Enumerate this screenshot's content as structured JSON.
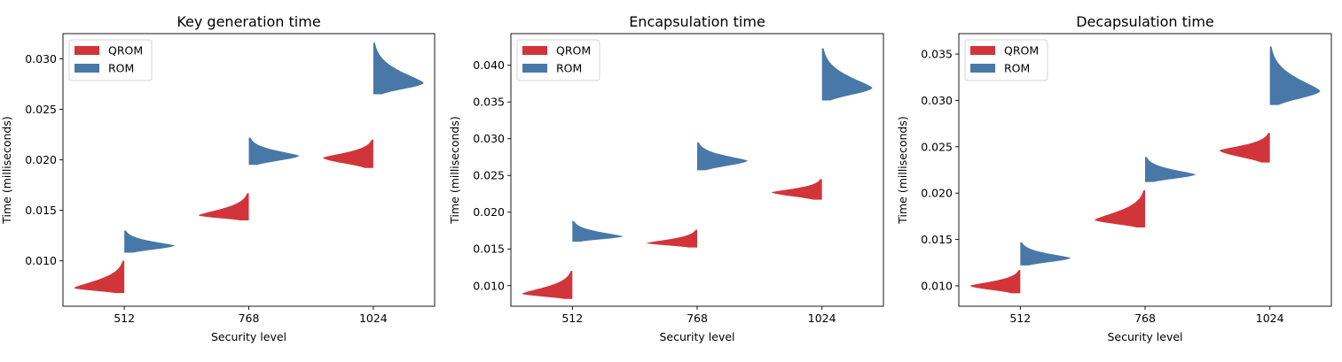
{
  "legend": {
    "qrom": "QROM",
    "rom": "ROM"
  },
  "colors": {
    "qrom": "#d1353a",
    "rom": "#4878a8"
  },
  "chart_data": [
    {
      "type": "violin",
      "title": "Key generation time",
      "xlabel": "Security level",
      "ylabel": "Time (milliseconds)",
      "categories": [
        "512",
        "768",
        "1024"
      ],
      "ylim": [
        0.0055,
        0.0325
      ],
      "yticks": [
        0.01,
        0.015,
        0.02,
        0.025,
        0.03
      ],
      "yticklabels": [
        "0.010",
        "0.015",
        "0.020",
        "0.025",
        "0.030"
      ],
      "legend_position": "upper-left",
      "series": [
        {
          "name": "QROM",
          "side": "left",
          "distributions": [
            {
              "min": 0.0068,
              "max": 0.01,
              "mode": 0.0073
            },
            {
              "min": 0.014,
              "max": 0.0167,
              "mode": 0.0145
            },
            {
              "min": 0.0192,
              "max": 0.022,
              "mode": 0.0202
            }
          ]
        },
        {
          "name": "ROM",
          "side": "right",
          "distributions": [
            {
              "min": 0.0108,
              "max": 0.013,
              "mode": 0.0115
            },
            {
              "min": 0.0195,
              "max": 0.0222,
              "mode": 0.0204
            },
            {
              "min": 0.0265,
              "max": 0.0316,
              "mode": 0.0276
            }
          ]
        }
      ]
    },
    {
      "type": "violin",
      "title": "Encapsulation time",
      "xlabel": "Security level",
      "ylabel": "Time (milliseconds)",
      "categories": [
        "512",
        "768",
        "1024"
      ],
      "ylim": [
        0.0072,
        0.0443
      ],
      "yticks": [
        0.01,
        0.015,
        0.02,
        0.025,
        0.03,
        0.035,
        0.04
      ],
      "yticklabels": [
        "0.010",
        "0.015",
        "0.020",
        "0.025",
        "0.030",
        "0.035",
        "0.040"
      ],
      "legend_position": "upper-left",
      "series": [
        {
          "name": "QROM",
          "side": "left",
          "distributions": [
            {
              "min": 0.0082,
              "max": 0.012,
              "mode": 0.0089
            },
            {
              "min": 0.0152,
              "max": 0.0176,
              "mode": 0.0158
            },
            {
              "min": 0.0217,
              "max": 0.0245,
              "mode": 0.0227
            }
          ]
        },
        {
          "name": "ROM",
          "side": "right",
          "distributions": [
            {
              "min": 0.016,
              "max": 0.0188,
              "mode": 0.0167
            },
            {
              "min": 0.0257,
              "max": 0.0295,
              "mode": 0.027
            },
            {
              "min": 0.0352,
              "max": 0.0423,
              "mode": 0.0369
            }
          ]
        }
      ]
    },
    {
      "type": "violin",
      "title": "Decapsulation time",
      "xlabel": "Security level",
      "ylabel": "Time (milliseconds)",
      "categories": [
        "512",
        "768",
        "1024"
      ],
      "ylim": [
        0.0078,
        0.0372
      ],
      "yticks": [
        0.01,
        0.015,
        0.02,
        0.025,
        0.03,
        0.035
      ],
      "yticklabels": [
        "0.010",
        "0.015",
        "0.020",
        "0.025",
        "0.030",
        "0.035"
      ],
      "legend_position": "upper-left",
      "series": [
        {
          "name": "QROM",
          "side": "left",
          "distributions": [
            {
              "min": 0.0092,
              "max": 0.0117,
              "mode": 0.01
            },
            {
              "min": 0.0163,
              "max": 0.0203,
              "mode": 0.0171
            },
            {
              "min": 0.0233,
              "max": 0.0265,
              "mode": 0.0246
            }
          ]
        },
        {
          "name": "ROM",
          "side": "right",
          "distributions": [
            {
              "min": 0.0122,
              "max": 0.0147,
              "mode": 0.013
            },
            {
              "min": 0.0212,
              "max": 0.0239,
              "mode": 0.022
            },
            {
              "min": 0.0295,
              "max": 0.0358,
              "mode": 0.031
            }
          ]
        }
      ]
    }
  ]
}
